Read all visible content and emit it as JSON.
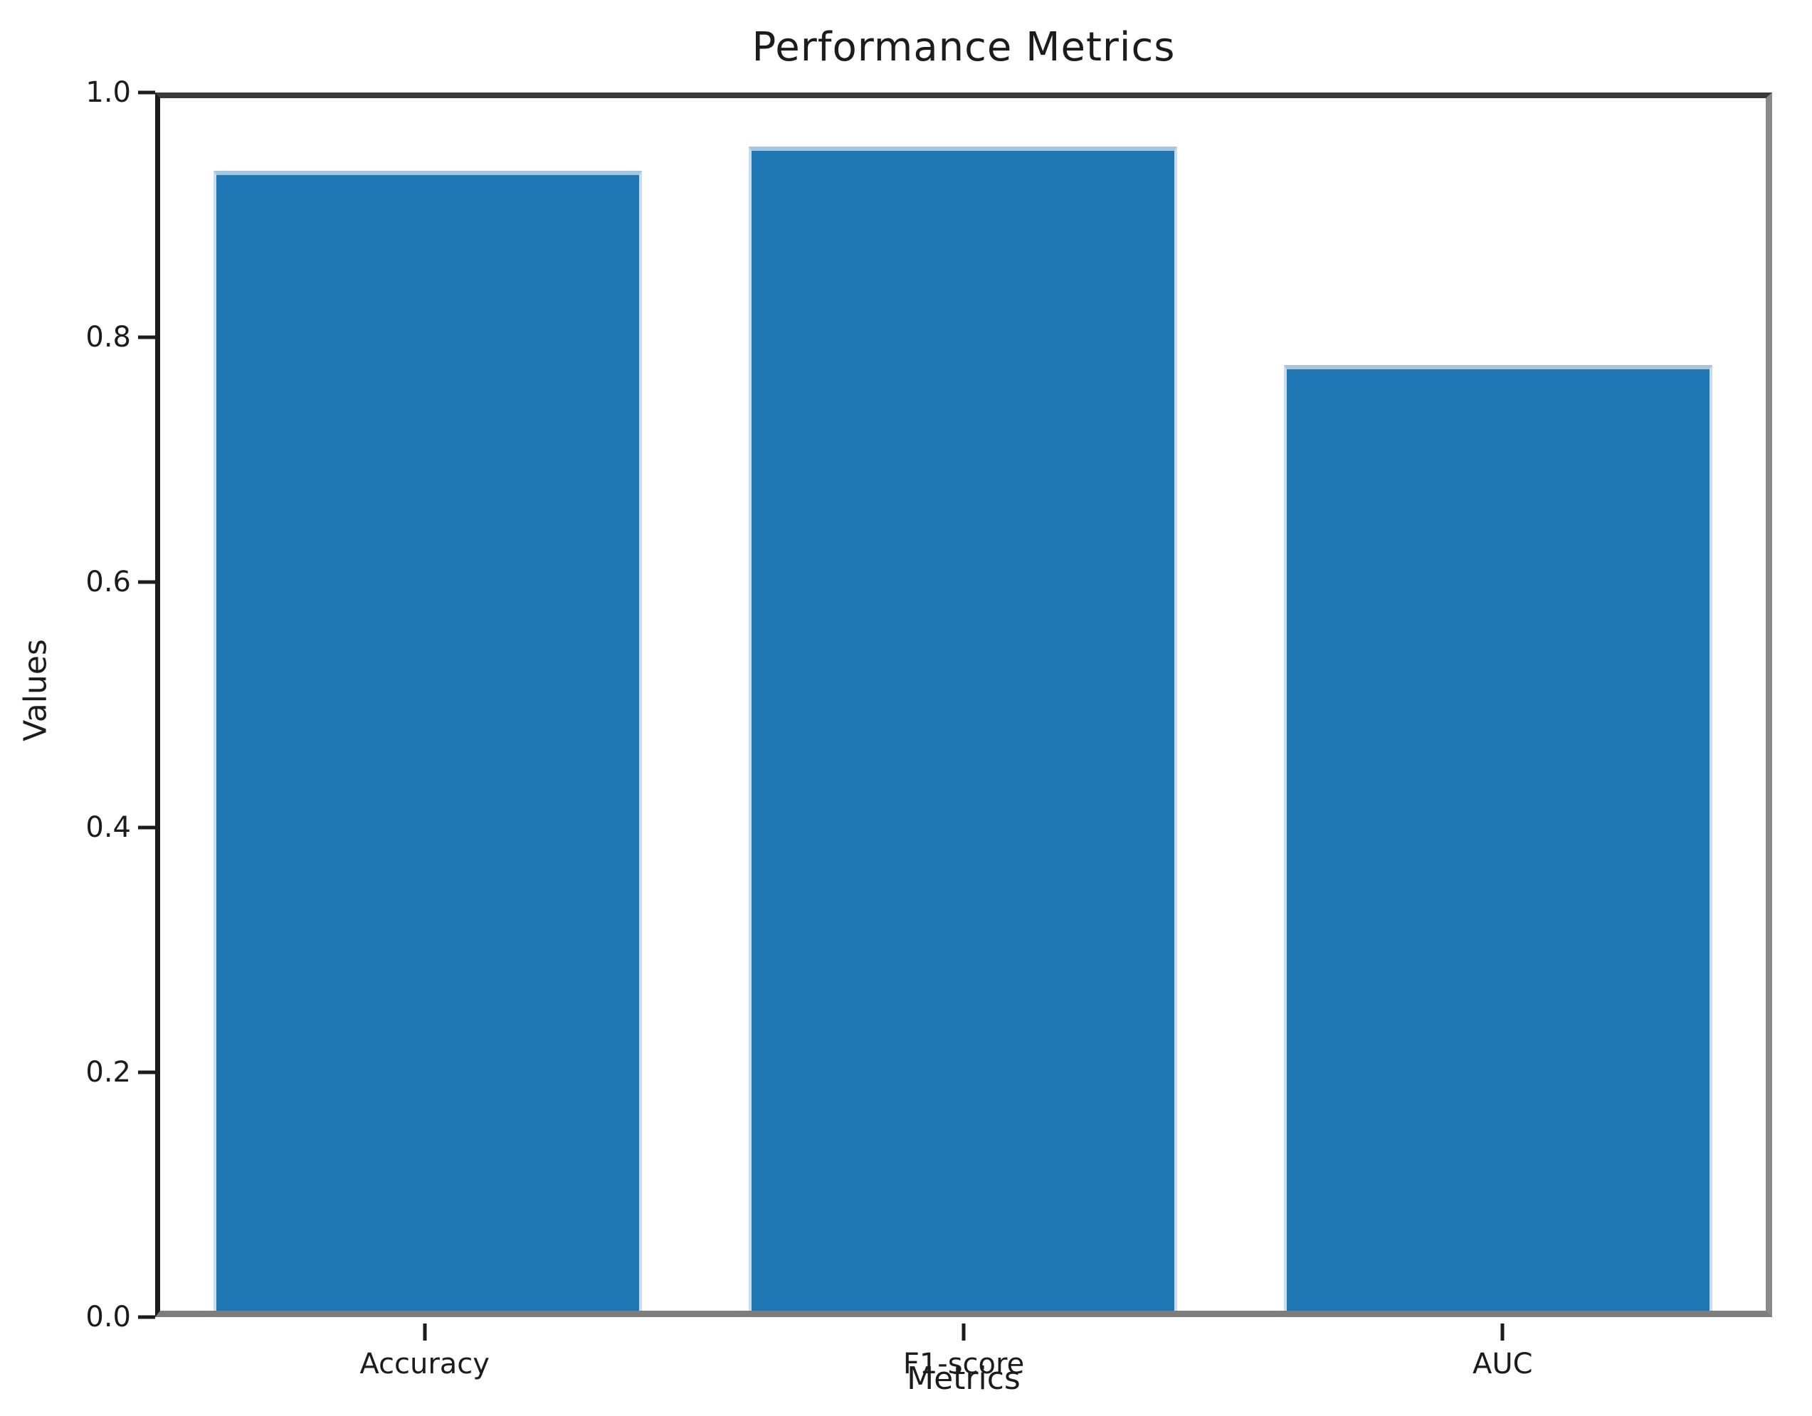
{
  "chart_data": {
    "type": "bar",
    "title": "Performance Metrics",
    "xlabel": "Metrics",
    "ylabel": "Values",
    "categories": [
      "Accuracy",
      "F1-score",
      "AUC"
    ],
    "values": [
      0.94,
      0.96,
      0.78
    ],
    "ylim": [
      0.0,
      1.0
    ],
    "yticks": [
      0.0,
      0.2,
      0.4,
      0.6,
      0.8,
      1.0
    ],
    "ytick_labels": [
      "0.0",
      "0.2",
      "0.4",
      "0.6",
      "0.8",
      "1.0"
    ],
    "grid": false,
    "legend": null,
    "bar_color": "#1f77b4",
    "bar_edge_highlight_color": "#a3c6e3",
    "spine_color": "#3a3a3a",
    "text_color": "#1c1c1c",
    "background_color": "#ffffff"
  }
}
